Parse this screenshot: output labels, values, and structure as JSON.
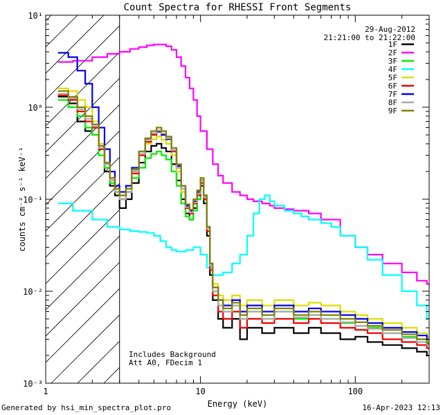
{
  "chart_data": {
    "type": "line",
    "title": "Count Spectra for RHESSI Front Segments",
    "date": "29-Aug-2012",
    "time_range": "21:21:00 to 21:22:00",
    "xlabel": "Energy (keV)",
    "ylabel": "counts cm⁻² s⁻¹ keV⁻¹",
    "xscale": "log",
    "yscale": "log",
    "xlim": [
      1,
      300
    ],
    "ylim": [
      0.001,
      10
    ],
    "x_ticks": [
      {
        "value": 1,
        "label": "1"
      },
      {
        "value": 10,
        "label": "10"
      },
      {
        "value": 100,
        "label": "100"
      }
    ],
    "y_ticks": [
      {
        "value": 0.001,
        "label": "10⁻³"
      },
      {
        "value": 0.01,
        "label": "10⁻²"
      },
      {
        "value": 0.1,
        "label": "10⁻¹"
      },
      {
        "value": 1,
        "label": "10⁰"
      },
      {
        "value": 10,
        "label": "10¹"
      }
    ],
    "hatched_region": [
      1,
      3
    ],
    "annotations": [
      "Includes Background",
      "Att A0, FDecim 1"
    ],
    "legend_position": "top-right",
    "series": [
      {
        "name": "1F",
        "color": "#000000",
        "x": [
          1.2,
          1.4,
          1.6,
          1.8,
          2,
          2.2,
          2.4,
          2.6,
          2.8,
          3,
          3.3,
          3.6,
          4,
          4.4,
          4.8,
          5.2,
          5.6,
          6,
          6.5,
          7,
          7.5,
          8,
          8.5,
          9,
          9.5,
          10,
          10.5,
          11,
          11.5,
          12,
          13,
          14,
          16,
          18,
          20,
          25,
          30,
          40,
          50,
          60,
          80,
          100,
          120,
          150,
          200,
          250,
          290
        ],
        "y": [
          1.3,
          1.1,
          0.7,
          0.55,
          0.6,
          0.35,
          0.2,
          0.14,
          0.11,
          0.08,
          0.1,
          0.15,
          0.25,
          0.33,
          0.38,
          0.4,
          0.36,
          0.33,
          0.24,
          0.16,
          0.1,
          0.07,
          0.06,
          0.08,
          0.1,
          0.14,
          0.09,
          0.04,
          0.015,
          0.008,
          0.005,
          0.004,
          0.005,
          0.003,
          0.004,
          0.0035,
          0.004,
          0.0035,
          0.004,
          0.0035,
          0.003,
          0.0032,
          0.0028,
          0.0026,
          0.0024,
          0.0022,
          0.002
        ]
      },
      {
        "name": "2F",
        "color": "#ff00ff",
        "x": [
          1.2,
          1.5,
          2,
          2.5,
          3,
          3.5,
          4,
          4.5,
          5,
          5.5,
          6,
          6.5,
          7,
          7.5,
          8,
          8.5,
          9,
          9.5,
          10,
          11,
          12,
          13,
          14,
          16,
          18,
          20,
          22,
          25,
          28,
          30,
          35,
          40,
          50,
          60,
          80,
          100,
          120,
          150,
          200,
          250,
          290
        ],
        "y": [
          3.1,
          3.2,
          3.5,
          3.8,
          4,
          4.3,
          4.5,
          4.7,
          4.8,
          4.8,
          4.6,
          4.2,
          3.5,
          2.8,
          2.1,
          1.6,
          1.2,
          0.8,
          0.55,
          0.35,
          0.24,
          0.18,
          0.15,
          0.12,
          0.11,
          0.1,
          0.095,
          0.09,
          0.085,
          0.08,
          0.078,
          0.075,
          0.07,
          0.06,
          0.04,
          0.03,
          0.025,
          0.02,
          0.016,
          0.013,
          0.012
        ]
      },
      {
        "name": "3F",
        "color": "#00ee00",
        "x": [
          1.2,
          1.4,
          1.6,
          1.8,
          2,
          2.2,
          2.4,
          2.6,
          2.8,
          3,
          3.3,
          3.6,
          4,
          4.4,
          4.8,
          5.2,
          5.6,
          6,
          6.5,
          7,
          7.5,
          8,
          8.5,
          9,
          9.5,
          10,
          10.5,
          11,
          11.5,
          12,
          13,
          14,
          16,
          18,
          20,
          25,
          30,
          40,
          50,
          60,
          80,
          100,
          120,
          150,
          200,
          250,
          290
        ],
        "y": [
          1.2,
          1.0,
          0.8,
          0.6,
          0.5,
          0.3,
          0.22,
          0.15,
          0.12,
          0.1,
          0.12,
          0.17,
          0.22,
          0.28,
          0.31,
          0.33,
          0.3,
          0.27,
          0.2,
          0.14,
          0.09,
          0.065,
          0.06,
          0.075,
          0.1,
          0.16,
          0.1,
          0.045,
          0.018,
          0.01,
          0.007,
          0.006,
          0.007,
          0.005,
          0.006,
          0.005,
          0.006,
          0.005,
          0.0055,
          0.005,
          0.0045,
          0.0042,
          0.004,
          0.0035,
          0.0032,
          0.003,
          0.0028
        ]
      },
      {
        "name": "4F",
        "color": "#00ffff",
        "x": [
          1.2,
          1.5,
          2,
          2.5,
          3,
          3.5,
          4,
          4.5,
          5,
          5.5,
          6,
          6.5,
          7,
          8,
          9,
          10,
          11,
          12,
          13,
          14,
          16,
          18,
          20,
          22,
          24,
          26,
          28,
          30,
          35,
          40,
          45,
          50,
          60,
          70,
          80,
          100,
          120,
          150,
          200,
          250,
          290
        ],
        "y": [
          0.09,
          0.075,
          0.06,
          0.05,
          0.047,
          0.045,
          0.044,
          0.043,
          0.04,
          0.035,
          0.03,
          0.028,
          0.027,
          0.028,
          0.03,
          0.025,
          0.018,
          0.015,
          0.015,
          0.016,
          0.02,
          0.025,
          0.04,
          0.07,
          0.1,
          0.11,
          0.095,
          0.085,
          0.075,
          0.07,
          0.065,
          0.06,
          0.055,
          0.05,
          0.04,
          0.03,
          0.022,
          0.015,
          0.01,
          0.007,
          0.005
        ]
      },
      {
        "name": "5F",
        "color": "#dddd00",
        "x": [
          1.2,
          1.4,
          1.6,
          1.8,
          2,
          2.2,
          2.4,
          2.6,
          2.8,
          3,
          3.3,
          3.6,
          4,
          4.4,
          4.8,
          5.2,
          5.6,
          6,
          6.5,
          7,
          7.5,
          8,
          8.5,
          9,
          9.5,
          10,
          10.5,
          11,
          11.5,
          12,
          13,
          14,
          16,
          18,
          20,
          25,
          30,
          40,
          50,
          60,
          80,
          100,
          120,
          150,
          200,
          250,
          290
        ],
        "y": [
          1.6,
          1.5,
          1.2,
          1.0,
          0.7,
          0.4,
          0.25,
          0.17,
          0.13,
          0.11,
          0.13,
          0.2,
          0.3,
          0.4,
          0.45,
          0.48,
          0.44,
          0.4,
          0.3,
          0.2,
          0.12,
          0.08,
          0.07,
          0.09,
          0.12,
          0.17,
          0.11,
          0.05,
          0.02,
          0.012,
          0.009,
          0.008,
          0.009,
          0.007,
          0.008,
          0.007,
          0.008,
          0.007,
          0.0075,
          0.007,
          0.006,
          0.0055,
          0.005,
          0.0045,
          0.004,
          0.0035,
          0.0032
        ]
      },
      {
        "name": "6F",
        "color": "#ee0000",
        "x": [
          1.2,
          1.4,
          1.6,
          1.8,
          2,
          2.2,
          2.4,
          2.6,
          2.8,
          3,
          3.3,
          3.6,
          4,
          4.4,
          4.8,
          5.2,
          5.6,
          6,
          6.5,
          7,
          7.5,
          8,
          8.5,
          9,
          9.5,
          10,
          10.5,
          11,
          11.5,
          12,
          13,
          14,
          16,
          18,
          20,
          25,
          30,
          40,
          50,
          60,
          80,
          100,
          120,
          150,
          200,
          250,
          290
        ],
        "y": [
          1.35,
          1.2,
          0.9,
          0.7,
          0.6,
          0.35,
          0.25,
          0.16,
          0.12,
          0.1,
          0.12,
          0.19,
          0.3,
          0.42,
          0.5,
          0.54,
          0.5,
          0.45,
          0.33,
          0.22,
          0.13,
          0.08,
          0.07,
          0.09,
          0.11,
          0.15,
          0.1,
          0.045,
          0.017,
          0.009,
          0.006,
          0.005,
          0.006,
          0.004,
          0.005,
          0.0045,
          0.005,
          0.0045,
          0.005,
          0.0045,
          0.004,
          0.0038,
          0.0035,
          0.003,
          0.0028,
          0.0026,
          0.0024
        ]
      },
      {
        "name": "7F",
        "color": "#0000ee",
        "x": [
          1.2,
          1.4,
          1.6,
          1.8,
          2,
          2.2,
          2.4,
          2.6,
          2.8,
          3,
          3.3,
          3.6,
          4,
          4.4,
          4.8,
          5.2,
          5.6,
          6,
          6.5,
          7,
          7.5,
          8,
          8.5,
          9,
          9.5,
          10,
          10.5,
          11,
          11.5,
          12,
          13,
          14,
          16,
          18,
          20,
          25,
          30,
          40,
          50,
          60,
          80,
          100,
          120,
          150,
          200,
          250,
          290
        ],
        "y": [
          3.9,
          3.5,
          2.5,
          1.8,
          1.0,
          0.6,
          0.35,
          0.2,
          0.14,
          0.12,
          0.14,
          0.22,
          0.33,
          0.45,
          0.52,
          0.55,
          0.5,
          0.45,
          0.34,
          0.23,
          0.14,
          0.085,
          0.075,
          0.095,
          0.12,
          0.16,
          0.11,
          0.05,
          0.02,
          0.011,
          0.008,
          0.007,
          0.008,
          0.006,
          0.007,
          0.006,
          0.007,
          0.006,
          0.0065,
          0.006,
          0.0055,
          0.005,
          0.0045,
          0.004,
          0.0036,
          0.0033,
          0.003
        ]
      },
      {
        "name": "8F",
        "color": "#aaaaaa",
        "x": [
          1.2,
          1.4,
          1.6,
          1.8,
          2,
          2.2,
          2.4,
          2.6,
          2.8,
          3,
          3.3,
          3.6,
          4,
          4.4,
          4.8,
          5.2,
          5.6,
          6,
          6.5,
          7,
          7.5,
          8,
          8.5,
          9,
          9.5,
          10,
          10.5,
          11,
          11.5,
          12,
          13,
          14,
          16,
          18,
          20,
          25,
          30,
          40,
          50,
          60,
          80,
          100,
          120,
          150,
          200,
          250,
          290
        ],
        "y": [
          1.4,
          1.25,
          0.95,
          0.75,
          0.62,
          0.36,
          0.24,
          0.16,
          0.12,
          0.1,
          0.12,
          0.2,
          0.31,
          0.44,
          0.52,
          0.56,
          0.52,
          0.46,
          0.34,
          0.22,
          0.13,
          0.082,
          0.072,
          0.092,
          0.115,
          0.16,
          0.105,
          0.048,
          0.019,
          0.01,
          0.007,
          0.006,
          0.007,
          0.005,
          0.006,
          0.005,
          0.006,
          0.0052,
          0.0055,
          0.005,
          0.0046,
          0.0042,
          0.0039,
          0.0035,
          0.0031,
          0.0028,
          0.0026
        ]
      },
      {
        "name": "9F",
        "color": "#808000",
        "x": [
          1.2,
          1.4,
          1.6,
          1.8,
          2,
          2.2,
          2.4,
          2.6,
          2.8,
          3,
          3.3,
          3.6,
          4,
          4.4,
          4.8,
          5.2,
          5.6,
          6,
          6.5,
          7,
          7.5,
          8,
          8.5,
          9,
          9.5,
          10,
          10.5,
          11,
          11.5,
          12,
          13,
          14,
          16,
          18,
          20,
          25,
          30,
          40,
          50,
          60,
          80,
          100,
          120,
          150,
          200,
          250,
          290
        ],
        "y": [
          1.5,
          1.3,
          1.0,
          0.8,
          0.65,
          0.38,
          0.25,
          0.17,
          0.13,
          0.11,
          0.13,
          0.21,
          0.33,
          0.46,
          0.55,
          0.6,
          0.55,
          0.48,
          0.36,
          0.24,
          0.14,
          0.088,
          0.077,
          0.1,
          0.125,
          0.17,
          0.11,
          0.05,
          0.02,
          0.011,
          0.008,
          0.0065,
          0.0075,
          0.0055,
          0.0065,
          0.0055,
          0.0065,
          0.0055,
          0.006,
          0.0055,
          0.005,
          0.0046,
          0.0042,
          0.0038,
          0.0034,
          0.003,
          0.0027
        ]
      }
    ]
  },
  "footer": {
    "left": "Generated by hsi_min_spectra_plot.pro",
    "right": "16-Apr-2023 12:13"
  }
}
